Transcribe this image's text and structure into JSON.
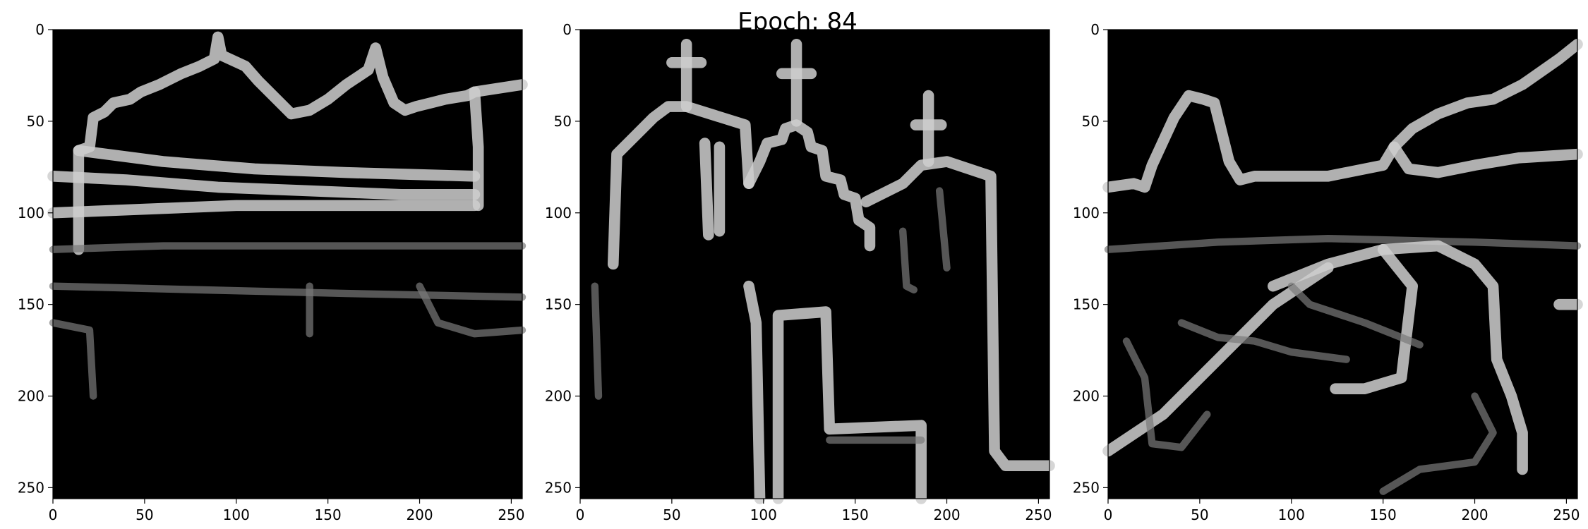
{
  "figure": {
    "suptitle": "Epoch: 84"
  },
  "chart_data": [
    {
      "type": "image",
      "title": "",
      "xlim": [
        0,
        256
      ],
      "ylim": [
        256,
        0
      ],
      "xticks": [
        0,
        50,
        100,
        150,
        200,
        250
      ],
      "yticks": [
        0,
        50,
        100,
        150,
        200,
        250
      ],
      "colormap": "gray",
      "content": "edge map: building facade with towers"
    },
    {
      "type": "image",
      "title": "",
      "xlim": [
        0,
        256
      ],
      "ylim": [
        256,
        0
      ],
      "xticks": [
        0,
        50,
        100,
        150,
        200,
        250
      ],
      "yticks": [
        0,
        50,
        100,
        150,
        200,
        250
      ],
      "colormap": "gray",
      "content": "edge map: church with three crosses"
    },
    {
      "type": "image",
      "title": "",
      "xlim": [
        0,
        256
      ],
      "ylim": [
        256,
        0
      ],
      "xticks": [
        0,
        50,
        100,
        150,
        200,
        250
      ],
      "yticks": [
        0,
        50,
        100,
        150,
        200,
        250
      ],
      "colormap": "gray",
      "content": "edge map: landscape with rocks"
    }
  ]
}
